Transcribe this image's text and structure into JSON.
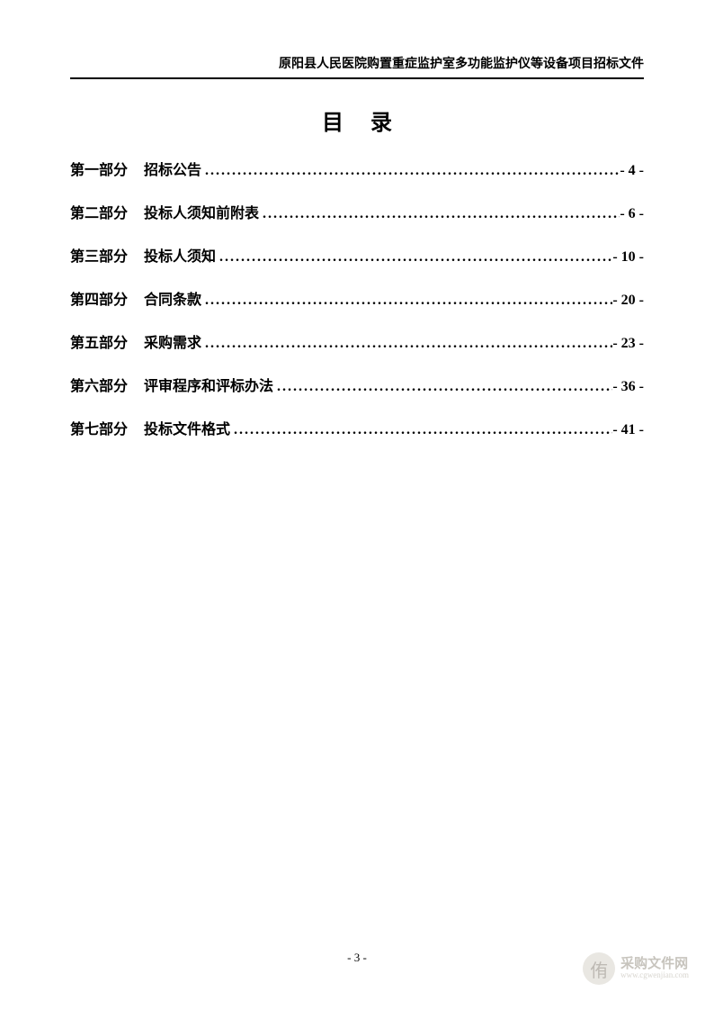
{
  "header": {
    "text": "原阳县人民医院购置重症监护室多功能监护仪等设备项目招标文件"
  },
  "title": "目录",
  "toc": [
    {
      "part": "第一部分",
      "name": "招标公告",
      "page": "- 4 -"
    },
    {
      "part": "第二部分",
      "name": "投标人须知前附表",
      "page": "- 6 -"
    },
    {
      "part": "第三部分",
      "name": "投标人须知",
      "page": "- 10 -"
    },
    {
      "part": "第四部分",
      "name": "合同条款",
      "page": "- 20 -"
    },
    {
      "part": "第五部分",
      "name": "采购需求",
      "page": "- 23 -"
    },
    {
      "part": "第六部分",
      "name": "评审程序和评标办法",
      "page": "- 36 -"
    },
    {
      "part": "第七部分",
      "name": "投标文件格式",
      "page": "- 41 -"
    }
  ],
  "footer": {
    "pageNumber": "- 3 -"
  },
  "watermark": {
    "iconChar": "侑",
    "textTop": "采购文件网",
    "textBottom": "www.cgwenjian.com"
  },
  "colors": {
    "text": "#000000",
    "background": "#ffffff",
    "watermarkIconBg": "#d8d4cc",
    "watermarkIconFg": "#8a8378",
    "watermarkTextTop": "#9a9488",
    "watermarkTextBottom": "#b8b3a8"
  },
  "typography": {
    "headerFontSize": 14,
    "titleFontSize": 24,
    "tocFontSize": 16,
    "footerFontSize": 13
  }
}
